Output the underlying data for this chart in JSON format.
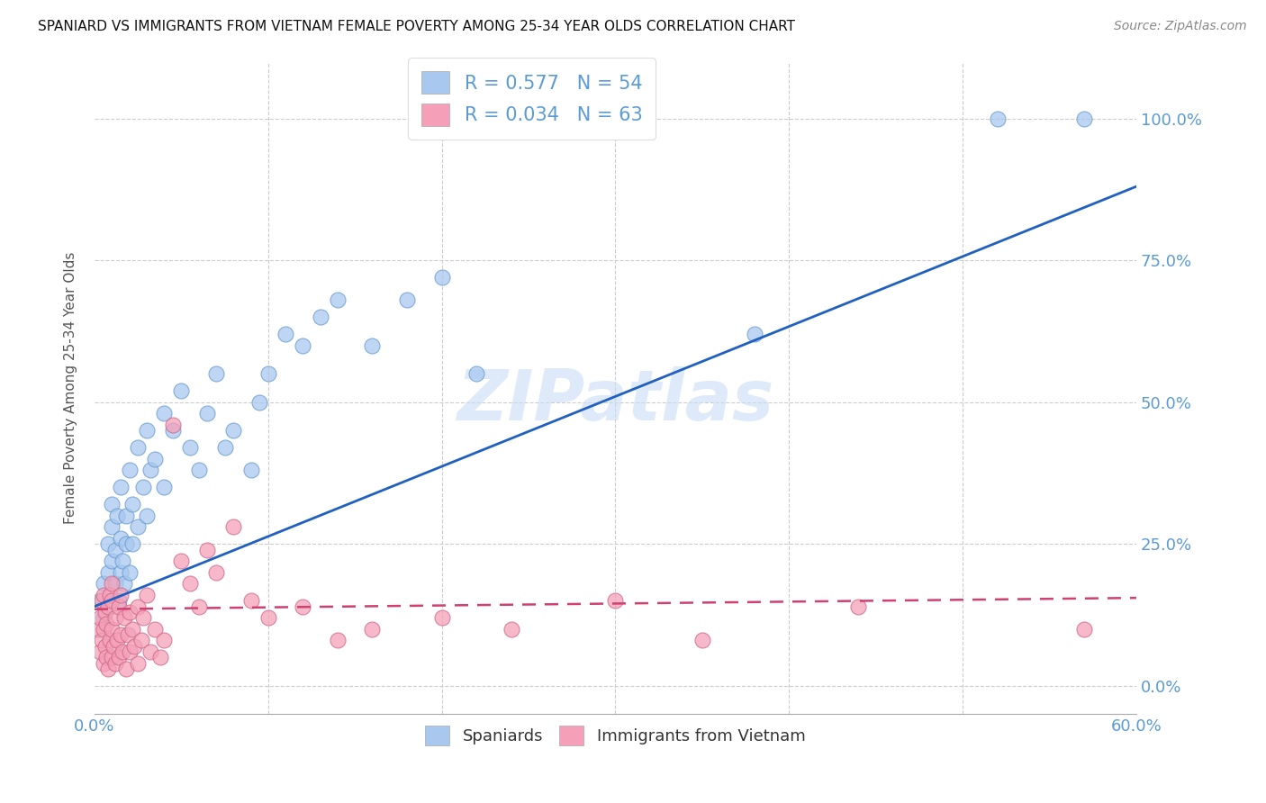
{
  "title": "SPANIARD VS IMMIGRANTS FROM VIETNAM FEMALE POVERTY AMONG 25-34 YEAR OLDS CORRELATION CHART",
  "source": "Source: ZipAtlas.com",
  "ylabel": "Female Poverty Among 25-34 Year Olds",
  "ytick_labels": [
    "0.0%",
    "25.0%",
    "50.0%",
    "75.0%",
    "100.0%"
  ],
  "ytick_values": [
    0,
    0.25,
    0.5,
    0.75,
    1.0
  ],
  "watermark": "ZIPatlas",
  "spaniards_color": "#a8c8f0",
  "immigrants_color": "#f5a0b8",
  "line_blue": "#2060c0",
  "line_pink": "#d04070",
  "background": "#ffffff",
  "xlim": [
    0,
    0.6
  ],
  "ylim": [
    -0.05,
    1.1
  ],
  "blue_line_x0": 0.0,
  "blue_line_y0": 0.14,
  "blue_line_x1": 0.6,
  "blue_line_y1": 0.88,
  "pink_line_x0": 0.0,
  "pink_line_y0": 0.135,
  "pink_line_x1": 0.6,
  "pink_line_y1": 0.155,
  "spaniards_x": [
    0.003,
    0.005,
    0.005,
    0.008,
    0.008,
    0.01,
    0.01,
    0.01,
    0.012,
    0.012,
    0.013,
    0.014,
    0.015,
    0.015,
    0.015,
    0.016,
    0.017,
    0.018,
    0.018,
    0.02,
    0.02,
    0.022,
    0.022,
    0.025,
    0.025,
    0.028,
    0.03,
    0.03,
    0.032,
    0.035,
    0.04,
    0.04,
    0.045,
    0.05,
    0.055,
    0.06,
    0.065,
    0.07,
    0.075,
    0.08,
    0.09,
    0.095,
    0.1,
    0.11,
    0.12,
    0.13,
    0.14,
    0.16,
    0.18,
    0.2,
    0.22,
    0.38,
    0.52,
    0.57
  ],
  "spaniards_y": [
    0.15,
    0.12,
    0.18,
    0.2,
    0.25,
    0.22,
    0.28,
    0.32,
    0.18,
    0.24,
    0.3,
    0.15,
    0.2,
    0.26,
    0.35,
    0.22,
    0.18,
    0.25,
    0.3,
    0.2,
    0.38,
    0.25,
    0.32,
    0.28,
    0.42,
    0.35,
    0.3,
    0.45,
    0.38,
    0.4,
    0.35,
    0.48,
    0.45,
    0.52,
    0.42,
    0.38,
    0.48,
    0.55,
    0.42,
    0.45,
    0.38,
    0.5,
    0.55,
    0.62,
    0.6,
    0.65,
    0.68,
    0.6,
    0.68,
    0.72,
    0.55,
    0.62,
    1.0,
    1.0
  ],
  "immigrants_x": [
    0.002,
    0.003,
    0.003,
    0.004,
    0.004,
    0.005,
    0.005,
    0.005,
    0.006,
    0.006,
    0.007,
    0.007,
    0.008,
    0.008,
    0.009,
    0.009,
    0.01,
    0.01,
    0.01,
    0.01,
    0.011,
    0.012,
    0.012,
    0.013,
    0.014,
    0.014,
    0.015,
    0.015,
    0.016,
    0.017,
    0.018,
    0.019,
    0.02,
    0.02,
    0.022,
    0.023,
    0.025,
    0.025,
    0.027,
    0.028,
    0.03,
    0.032,
    0.035,
    0.038,
    0.04,
    0.045,
    0.05,
    0.055,
    0.06,
    0.065,
    0.07,
    0.08,
    0.09,
    0.1,
    0.12,
    0.14,
    0.16,
    0.2,
    0.24,
    0.3,
    0.35,
    0.44,
    0.57
  ],
  "immigrants_y": [
    0.1,
    0.06,
    0.12,
    0.08,
    0.15,
    0.04,
    0.1,
    0.16,
    0.07,
    0.13,
    0.05,
    0.11,
    0.03,
    0.14,
    0.08,
    0.16,
    0.05,
    0.1,
    0.15,
    0.18,
    0.07,
    0.04,
    0.12,
    0.08,
    0.05,
    0.14,
    0.09,
    0.16,
    0.06,
    0.12,
    0.03,
    0.09,
    0.06,
    0.13,
    0.1,
    0.07,
    0.04,
    0.14,
    0.08,
    0.12,
    0.16,
    0.06,
    0.1,
    0.05,
    0.08,
    0.46,
    0.22,
    0.18,
    0.14,
    0.24,
    0.2,
    0.28,
    0.15,
    0.12,
    0.14,
    0.08,
    0.1,
    0.12,
    0.1,
    0.15,
    0.08,
    0.14,
    0.1
  ]
}
